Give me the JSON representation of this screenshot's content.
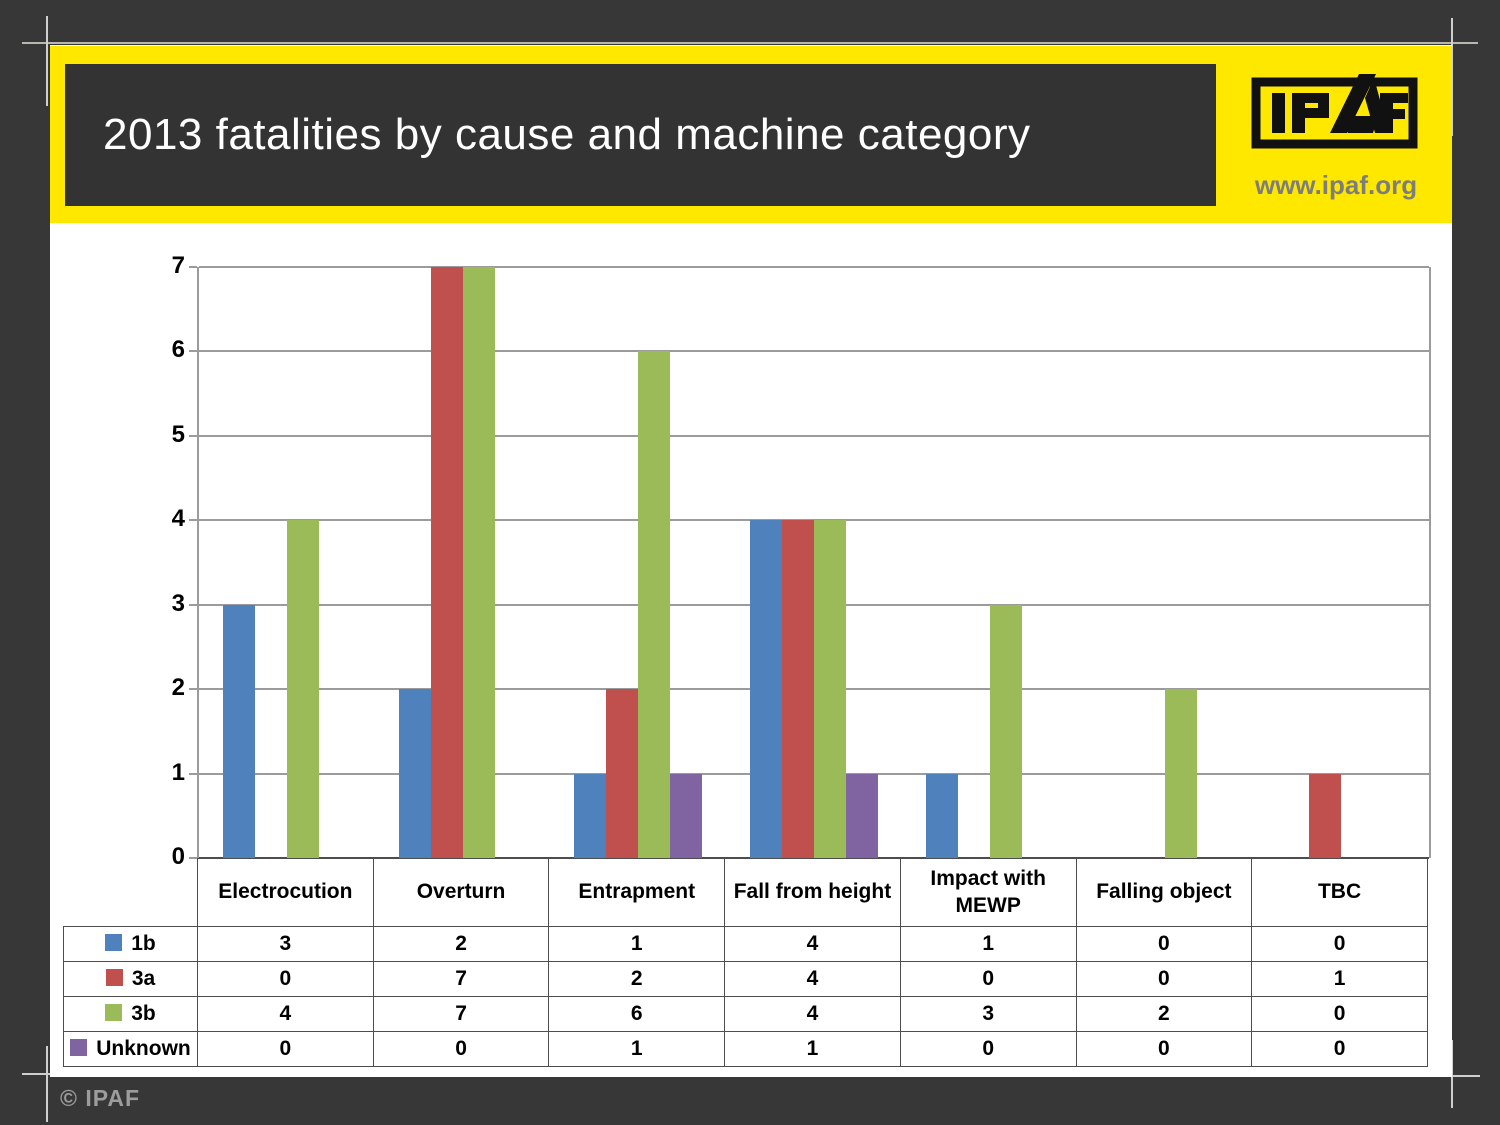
{
  "slide": {
    "title": "2013 fatalities by cause and machine category",
    "website": "www.ipaf.org",
    "footer": "© IPAF",
    "logo": "IPAF"
  },
  "colors": {
    "brand_yellow": "#ffe800",
    "header_box": "#333333",
    "background": "#373737",
    "series_1b": "#4f81bd",
    "series_3a": "#c0504d",
    "series_3b": "#9bbb59",
    "series_unknown": "#8064a2",
    "gridline": "#9b9b9b",
    "table_border": "#4d4d4d"
  },
  "chart_data": {
    "type": "bar",
    "title": "2013 fatalities by cause and machine category",
    "categories": [
      "Electrocution",
      "Overturn",
      "Entrapment",
      "Fall from height",
      "Impact with MEWP",
      "Falling object",
      "TBC"
    ],
    "series": [
      {
        "name": "1b",
        "color": "#4f81bd",
        "values": [
          3,
          2,
          1,
          4,
          1,
          0,
          0
        ]
      },
      {
        "name": "3a",
        "color": "#c0504d",
        "values": [
          0,
          7,
          2,
          4,
          0,
          0,
          1
        ]
      },
      {
        "name": "3b",
        "color": "#9bbb59",
        "values": [
          4,
          7,
          6,
          4,
          3,
          2,
          0
        ]
      },
      {
        "name": "Unknown",
        "color": "#8064a2",
        "values": [
          0,
          0,
          1,
          1,
          0,
          0,
          0
        ]
      }
    ],
    "xlabel": "",
    "ylabel": "",
    "ylim": [
      0,
      7
    ],
    "yticks": [
      0,
      1,
      2,
      3,
      4,
      5,
      6,
      7
    ],
    "grid": true,
    "legend_position": "data-table-left",
    "data_table_shown": true
  }
}
